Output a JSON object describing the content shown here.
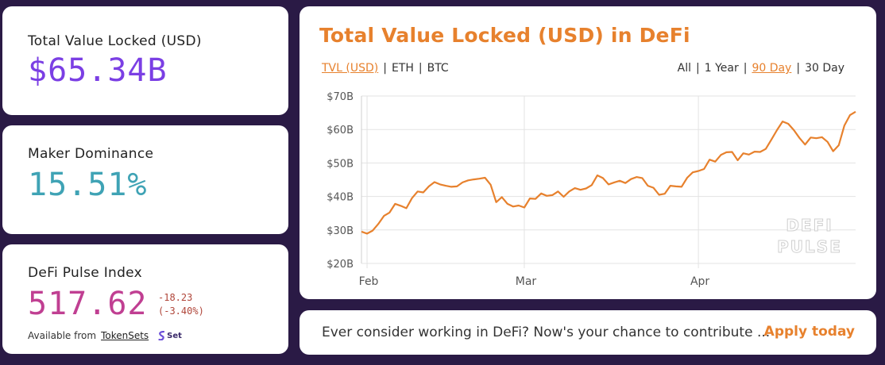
{
  "tvl": {
    "label": "Total Value Locked (USD)",
    "value": "$65.34B"
  },
  "maker": {
    "label": "Maker Dominance",
    "value": "15.51%"
  },
  "index": {
    "label": "DeFi Pulse Index",
    "value": "517.62",
    "change": "-18.23",
    "change_pct": "(-3.40%)",
    "available_from": "Available from",
    "link": "TokenSets",
    "set_logo": "Set"
  },
  "chart_panel": {
    "title": "Total Value Locked (USD) in DeFi",
    "currency_tabs": [
      "TVL (USD)",
      "ETH",
      "BTC"
    ],
    "active_currency": "TVL (USD)",
    "range_tabs": [
      "All",
      "1 Year",
      "90 Day",
      "30 Day"
    ],
    "active_range": "90 Day",
    "watermark_line1": "DEFI",
    "watermark_line2": "PULSE"
  },
  "chart_data": {
    "type": "line",
    "title": "Total Value Locked (USD) in DeFi",
    "xlabel": "",
    "ylabel": "",
    "y_ticks": [
      "$20B",
      "$30B",
      "$40B",
      "$50B",
      "$60B",
      "$70B"
    ],
    "ylim": [
      20,
      70
    ],
    "x_ticks": [
      "Feb",
      "Mar",
      "Apr"
    ],
    "x_tick_days": [
      1,
      29,
      60
    ],
    "xlim": [
      0,
      88
    ],
    "grid": true,
    "color": "#e7812d",
    "series": [
      {
        "values": [
          29.5,
          28.9,
          29.8,
          31.8,
          34.2,
          35.2,
          37.8,
          37.2,
          36.5,
          39.5,
          41.5,
          41.2,
          43.0,
          44.3,
          43.6,
          43.2,
          42.9,
          43.0,
          44.2,
          44.8,
          45.1,
          45.3,
          45.6,
          43.5,
          38.3,
          39.8,
          37.8,
          37.0,
          37.3,
          36.7,
          39.4,
          39.3,
          40.9,
          40.2,
          40.4,
          41.5,
          39.9,
          41.5,
          42.5,
          42.0,
          42.4,
          43.4,
          46.3,
          45.5,
          43.6,
          44.2,
          44.7,
          44.0,
          45.2,
          45.8,
          45.5,
          43.2,
          42.6,
          40.5,
          40.8,
          43.2,
          43.0,
          42.9,
          45.6,
          47.2,
          47.6,
          48.2,
          51.0,
          50.4,
          52.4,
          53.2,
          53.3,
          50.8,
          52.9,
          52.5,
          53.4,
          53.3,
          54.2,
          57.0,
          59.8,
          62.4,
          61.7,
          59.8,
          57.5,
          55.5,
          57.6,
          57.4,
          57.7,
          56.3,
          53.5,
          55.3,
          61.2,
          64.3,
          65.3
        ]
      }
    ]
  },
  "cta": {
    "text": "Ever consider working in DeFi? Now's your chance to contribute ...",
    "link": "Apply today"
  }
}
